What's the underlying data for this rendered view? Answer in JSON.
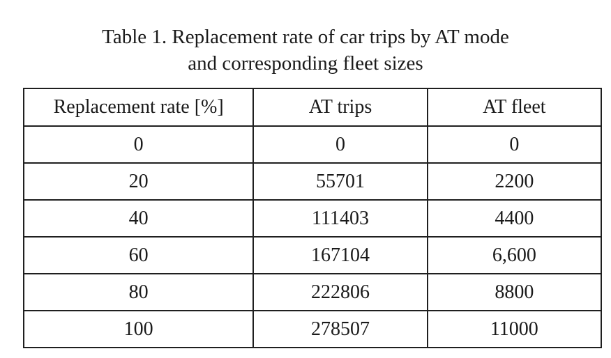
{
  "caption": {
    "line1": "Table 1. Replacement rate of car trips by AT mode",
    "line2": "and corresponding fleet sizes"
  },
  "table": {
    "headers": [
      "Replacement rate [%]",
      "AT trips",
      "AT fleet"
    ],
    "rows": [
      [
        "0",
        "0",
        "0"
      ],
      [
        "20",
        "55701",
        "2200"
      ],
      [
        "40",
        "111403",
        "4400"
      ],
      [
        "60",
        "167104",
        "6,600"
      ],
      [
        "80",
        "222806",
        "8800"
      ],
      [
        "100",
        "278507",
        "11000"
      ]
    ]
  }
}
